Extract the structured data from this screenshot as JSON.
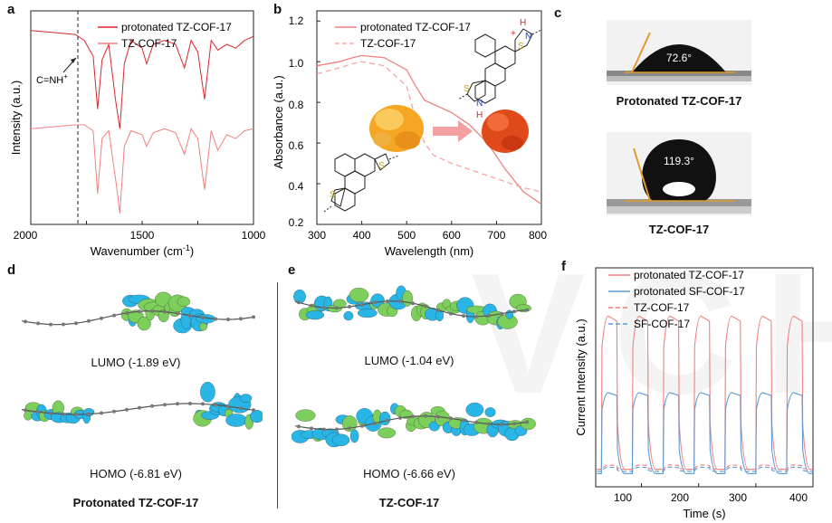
{
  "panel_labels": [
    "a",
    "b",
    "c",
    "d",
    "e",
    "f"
  ],
  "panel_a": {
    "xlabel": "Wavenumber (cm",
    "xlabel_sup": "-1",
    "xlabel_end": ")",
    "ylabel": "Intensity (a.u.)",
    "xticks": [
      "2000",
      "1500",
      "1000"
    ],
    "legend": [
      "protonated TZ-COF-17",
      "TZ-COF-17"
    ],
    "annotation": "C=NH",
    "annotation_sup": "+"
  },
  "panel_b": {
    "xlabel": "Wavelength (nm)",
    "ylabel": "Absorbance (a.u.)",
    "xticks": [
      "300",
      "400",
      "500",
      "600",
      "700",
      "800"
    ],
    "yticks": [
      "0.2",
      "0.4",
      "0.6",
      "0.8",
      "1.0",
      "1.2"
    ],
    "legend": [
      "protonated TZ-COF-17",
      "TZ-COF-17"
    ],
    "atom_labels": [
      "S",
      "N",
      "S",
      "N",
      "H",
      "H",
      "+"
    ]
  },
  "panel_c": {
    "angle_top": "72.6°",
    "caption_top": "Protonated TZ-COF-17",
    "angle_bottom": "119.3°",
    "caption_bottom": "TZ-COF-17"
  },
  "panel_d": {
    "lumo": "LUMO (-1.89 eV)",
    "homo": "HOMO (-6.81 eV)",
    "caption": "Protonated TZ-COF-17"
  },
  "panel_e": {
    "lumo": "LUMO (-1.04 eV)",
    "homo": "HOMO (-6.66 eV)",
    "caption": "TZ-COF-17"
  },
  "panel_f": {
    "xlabel": "Time (s)",
    "ylabel": "Current Intensity (a.u.)",
    "xticks": [
      "100",
      "200",
      "300",
      "400"
    ],
    "legend": [
      "protonated TZ-COF-17",
      "protonated SF-COF-17",
      "TZ-COF-17",
      "SF-COF-17"
    ]
  },
  "colors": {
    "red": "#d9272e",
    "pink": "#f08080",
    "blue": "#5b9bd5",
    "green": "#7ccf5a",
    "cyan": "#29b6e6"
  },
  "chart_data": [
    {
      "type": "line",
      "title": "",
      "xlabel": "Wavenumber (cm-1)",
      "ylabel": "Intensity (a.u.)",
      "xlim": [
        2000,
        1000
      ],
      "series": [
        {
          "name": "protonated TZ-COF-17",
          "x": [
            2000,
            1900,
            1800,
            1760,
            1720,
            1700,
            1680,
            1650,
            1620,
            1600,
            1580,
            1550,
            1500,
            1480,
            1450,
            1400,
            1350,
            1310,
            1280,
            1250,
            1220,
            1190,
            1160,
            1120,
            1080,
            1040,
            1000
          ],
          "y": [
            0.95,
            0.94,
            0.93,
            0.9,
            0.82,
            0.55,
            0.8,
            0.88,
            0.6,
            0.45,
            0.78,
            0.9,
            0.86,
            0.78,
            0.88,
            0.9,
            0.88,
            0.76,
            0.9,
            0.84,
            0.6,
            0.9,
            0.85,
            0.88,
            0.86,
            0.9,
            0.92
          ]
        },
        {
          "name": "TZ-COF-17",
          "x": [
            2000,
            1900,
            1800,
            1760,
            1720,
            1700,
            1680,
            1650,
            1620,
            1600,
            1580,
            1550,
            1500,
            1480,
            1450,
            1400,
            1350,
            1310,
            1280,
            1250,
            1220,
            1190,
            1160,
            1120,
            1080,
            1040,
            1000
          ],
          "y": [
            0.45,
            0.46,
            0.47,
            0.47,
            0.44,
            0.12,
            0.4,
            0.44,
            0.2,
            0.02,
            0.36,
            0.44,
            0.42,
            0.36,
            0.43,
            0.45,
            0.43,
            0.32,
            0.45,
            0.4,
            0.14,
            0.44,
            0.34,
            0.42,
            0.4,
            0.44,
            0.45
          ]
        }
      ]
    },
    {
      "type": "line",
      "title": "",
      "xlabel": "Wavelength (nm)",
      "ylabel": "Absorbance (a.u.)",
      "xlim": [
        300,
        800
      ],
      "ylim": [
        0.2,
        1.25
      ],
      "series": [
        {
          "name": "protonated TZ-COF-17",
          "x": [
            300,
            350,
            380,
            400,
            450,
            500,
            520,
            540,
            560,
            600,
            640,
            680,
            720,
            760,
            800
          ],
          "y": [
            0.98,
            1.0,
            1.02,
            1.03,
            1.02,
            0.96,
            0.88,
            0.81,
            0.79,
            0.75,
            0.69,
            0.6,
            0.47,
            0.36,
            0.3
          ]
        },
        {
          "name": "TZ-COF-17",
          "x": [
            300,
            350,
            380,
            400,
            450,
            500,
            520,
            540,
            560,
            600,
            640,
            680,
            720,
            760,
            800
          ],
          "y": [
            0.94,
            0.97,
            0.99,
            1.0,
            0.98,
            0.88,
            0.72,
            0.6,
            0.54,
            0.5,
            0.47,
            0.44,
            0.41,
            0.38,
            0.36
          ]
        }
      ]
    },
    {
      "type": "line",
      "title": "",
      "xlabel": "Time (s)",
      "ylabel": "Current Intensity (a.u.)",
      "xlim": [
        20,
        400
      ],
      "series": [
        {
          "name": "protonated TZ-COF-17",
          "on_level": 0.78,
          "off_level": 0.08
        },
        {
          "name": "protonated SF-COF-17",
          "on_level": 0.43,
          "off_level": 0.06
        },
        {
          "name": "TZ-COF-17",
          "on_level": 0.1,
          "off_level": 0.08
        },
        {
          "name": "SF-COF-17",
          "on_level": 0.09,
          "off_level": 0.07
        }
      ]
    }
  ]
}
